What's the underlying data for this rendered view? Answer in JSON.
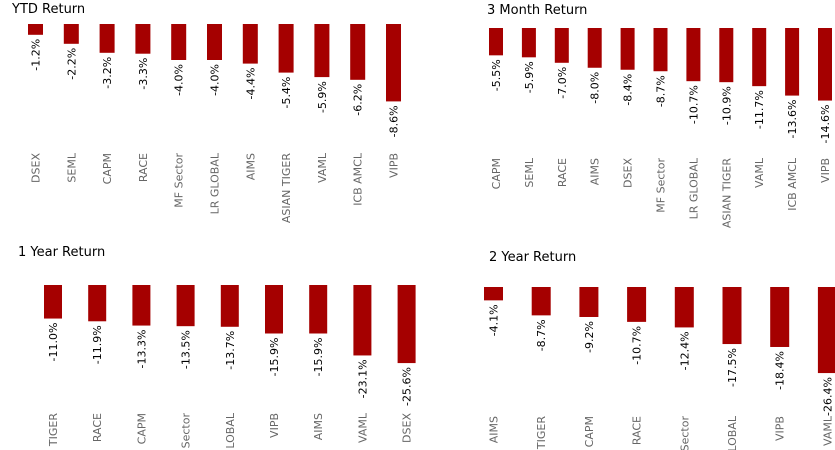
{
  "chart_data": [
    {
      "type": "bar",
      "title": "YTD Return",
      "categories": [
        "DSEX",
        "SEML",
        "CAPM",
        "RACE",
        "MF Sector",
        "LR GLOBAL",
        "AIMS",
        "ASIAN TIGER",
        "VAML",
        "ICB AMCL",
        "VIPB"
      ],
      "value_labels": [
        "-1.2%",
        "-2.2%",
        "-3.2%",
        "-3.3%",
        "-4.0%",
        "-4.0%",
        "-4.4%",
        "-5.4%",
        "-5.9%",
        "-6.2%",
        "-8.6%"
      ],
      "values": [
        -1.2,
        -2.2,
        -3.2,
        -3.3,
        -4.0,
        -4.0,
        -4.4,
        -5.4,
        -5.9,
        -6.2,
        -8.6
      ],
      "color": "#A50000"
    },
    {
      "type": "bar",
      "title": "3 Month Return",
      "categories": [
        "CAPM",
        "SEML",
        "RACE",
        "AIMS",
        "DSEX",
        "MF Sector",
        "LR GLOBAL",
        "ASIAN TIGER",
        "VAML",
        "ICB AMCL",
        "VIPB"
      ],
      "value_labels": [
        "-5.5%",
        "-5.9%",
        "-7.0%",
        "-8.0%",
        "-8.4%",
        "-8.7%",
        "-10.7%",
        "-10.9%",
        "-11.7%",
        "-13.6%",
        "-14.6%"
      ],
      "values": [
        -5.5,
        -5.9,
        -7.0,
        -8.0,
        -8.4,
        -8.7,
        -10.7,
        -10.9,
        -11.7,
        -13.6,
        -14.6
      ],
      "color": "#A50000"
    },
    {
      "type": "bar",
      "title": "1 Year Return",
      "categories": [
        "TIGER",
        "RACE",
        "CAPM",
        "Sector",
        "LOBAL",
        "VIPB",
        "AIMS",
        "VAML",
        "DSEX"
      ],
      "value_labels": [
        "-11.0%",
        "-11.9%",
        "-13.3%",
        "-13.5%",
        "-13.7%",
        "-15.9%",
        "-15.9%",
        "-23.1%",
        "-25.6%"
      ],
      "values": [
        -11.0,
        -11.9,
        -13.3,
        -13.5,
        -13.7,
        -15.9,
        -15.9,
        -23.1,
        -25.6
      ],
      "color": "#A50000"
    },
    {
      "type": "bar",
      "title": "2 Year Return",
      "categories": [
        "AIMS",
        "TIGER",
        "CAPM",
        "RACE",
        "Sector",
        "LOBAL",
        "VIPB",
        "VAML"
      ],
      "value_labels": [
        "-4.1%",
        "-8.7%",
        "-9.2%",
        "-10.7%",
        "-12.4%",
        "-17.5%",
        "-18.4%",
        "-26.4%"
      ],
      "values": [
        -4.1,
        -8.7,
        -9.2,
        -10.7,
        -12.4,
        -17.5,
        -18.4,
        -26.4
      ],
      "color": "#A50000"
    }
  ]
}
